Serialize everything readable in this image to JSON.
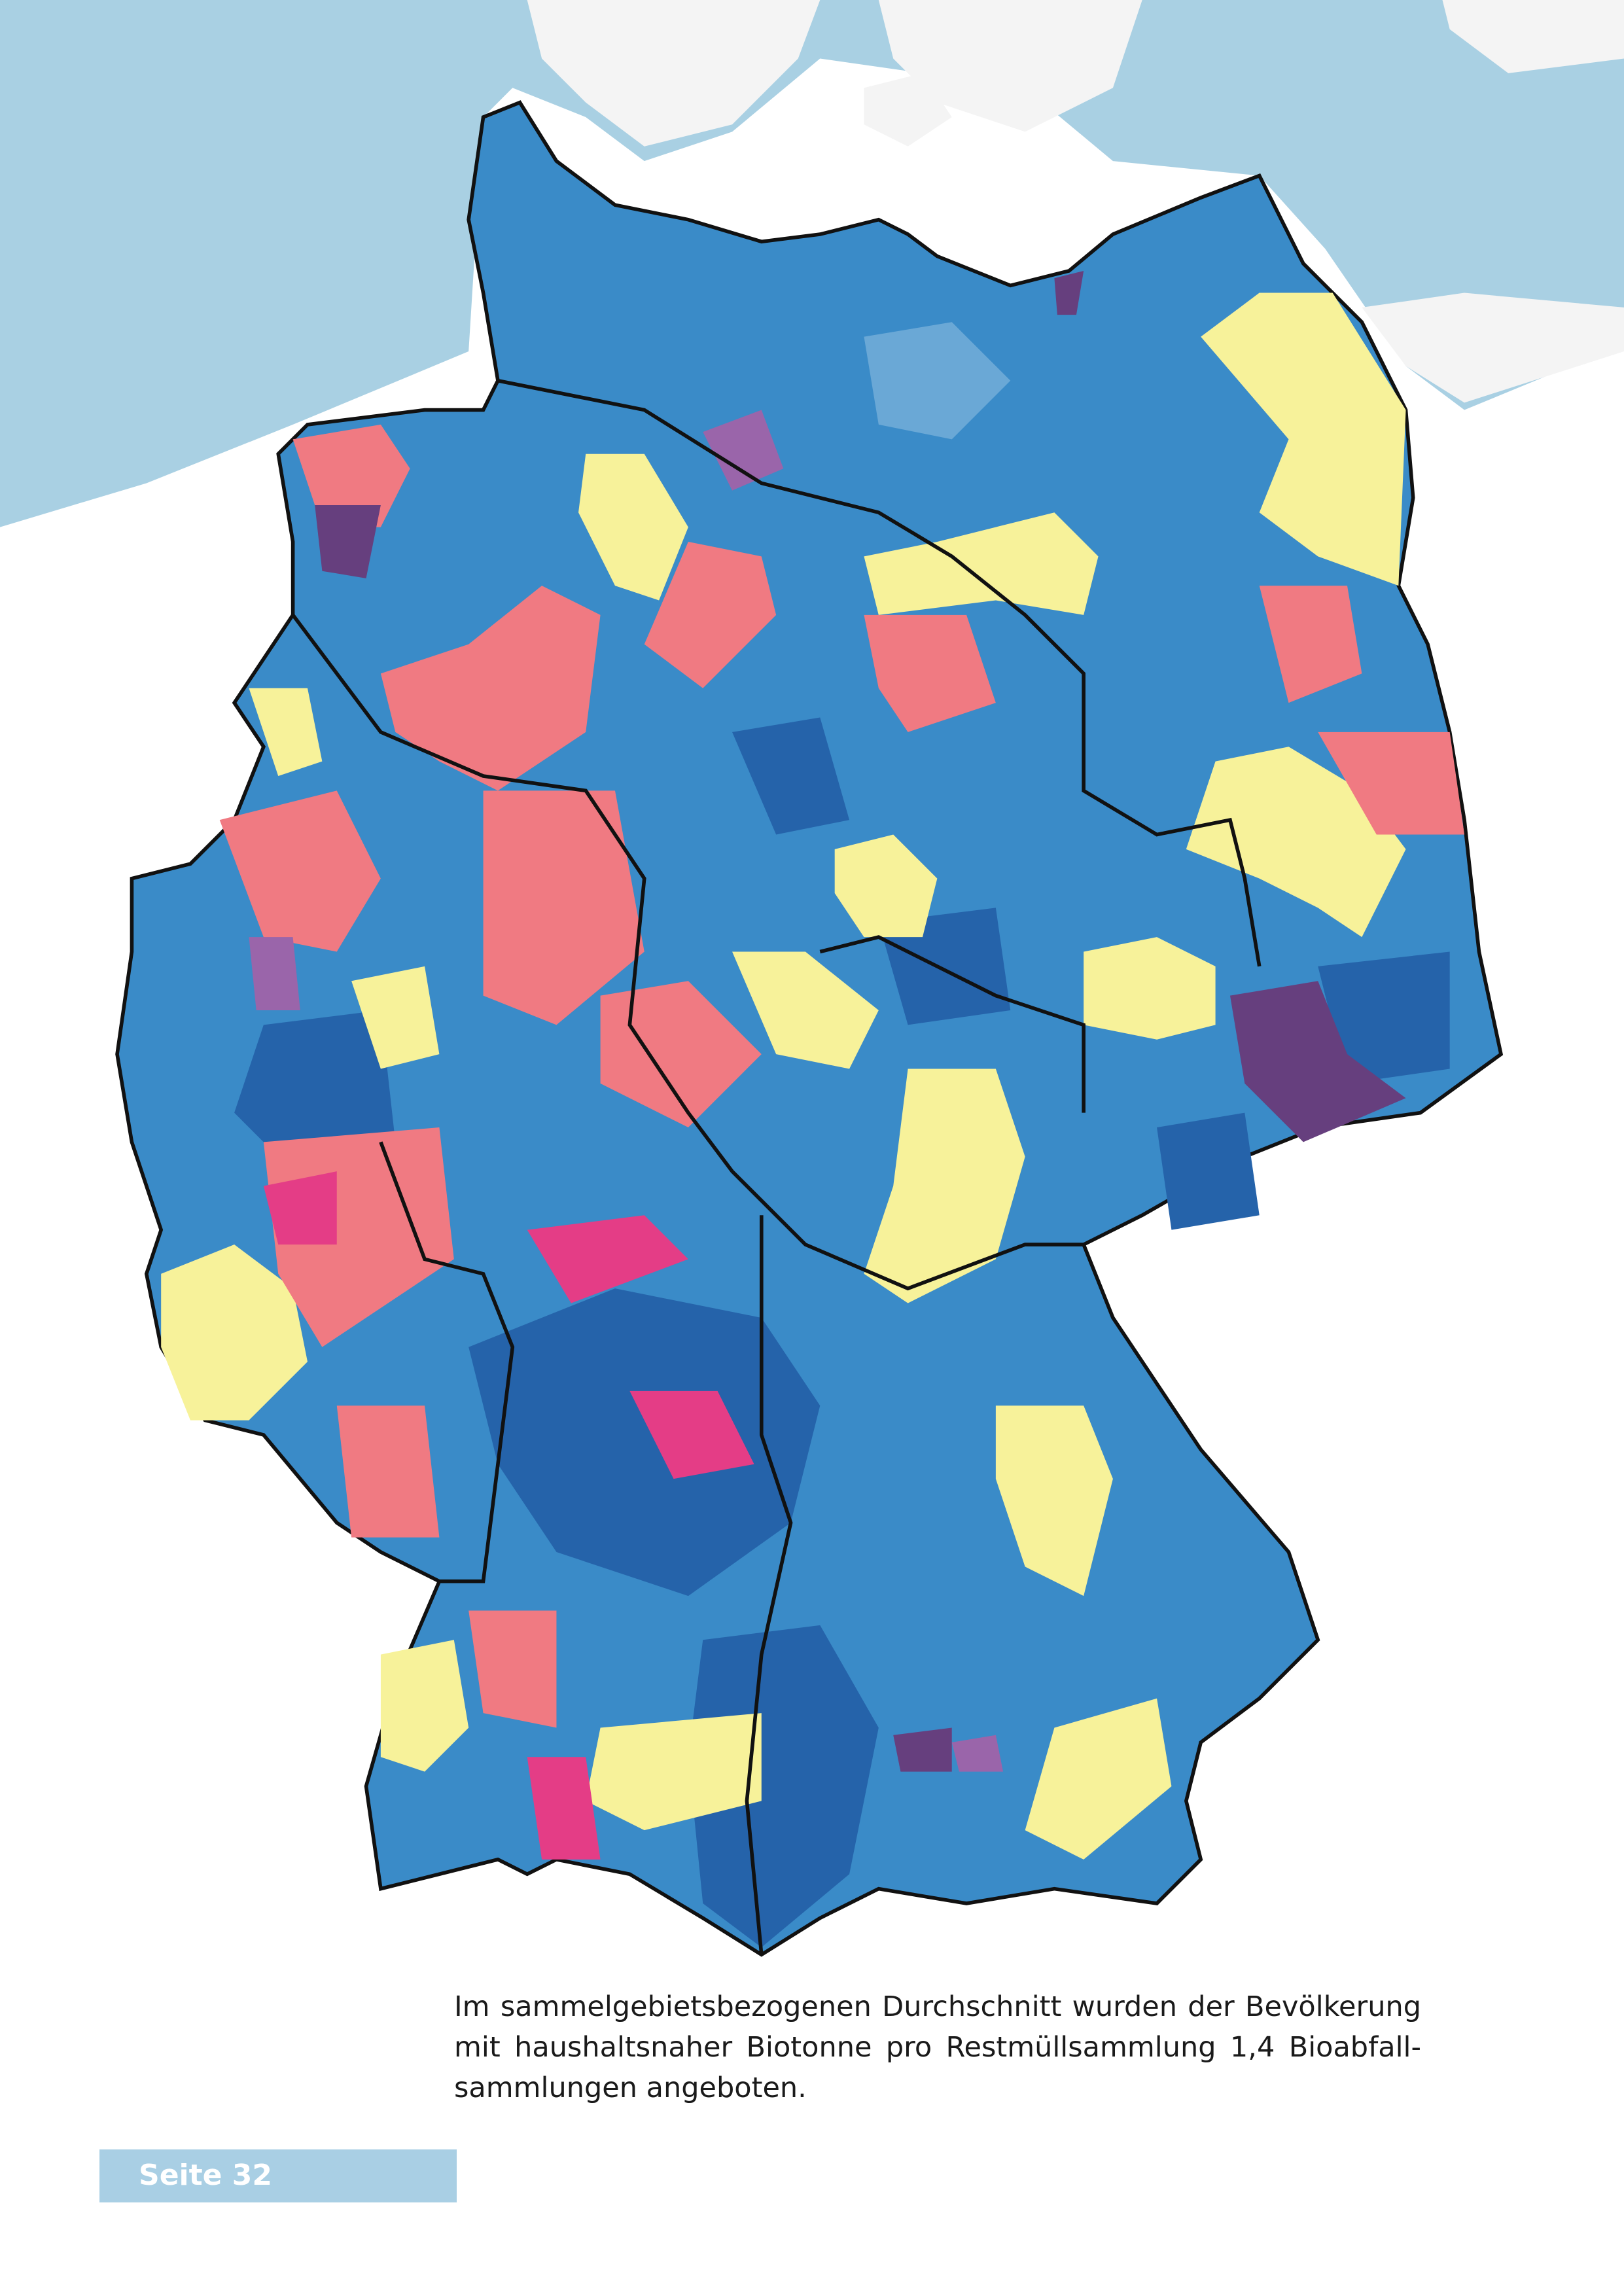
{
  "caption": {
    "lines": [
      "Im sammelgebietsbezogenen Durchschnitt wurden der Bevölkerung",
      "mit haushaltsnaher Biotonne pro Restmüllsammlung 1,4 Bioabfall-",
      "sammlungen angeboten."
    ]
  },
  "footer": {
    "page_label": "Seite 32"
  }
}
